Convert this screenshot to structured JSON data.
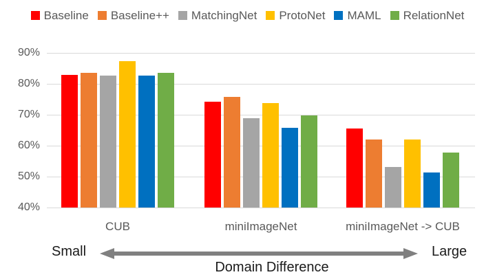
{
  "chart_data": {
    "type": "bar",
    "title": "",
    "categories": [
      "CUB",
      "miniImageNet",
      "miniImageNet -> CUB"
    ],
    "series": [
      {
        "name": "Baseline",
        "color": "#FF0000",
        "values": [
          82.85,
          74.27,
          65.57
        ]
      },
      {
        "name": "Baseline++",
        "color": "#ED7D31",
        "values": [
          83.58,
          75.68,
          62.04
        ]
      },
      {
        "name": "MatchingNet",
        "color": "#A5A5A5",
        "values": [
          82.75,
          68.88,
          53.07
        ]
      },
      {
        "name": "ProtoNet",
        "color": "#FFC000",
        "values": [
          87.42,
          73.68,
          62.02
        ]
      },
      {
        "name": "MAML",
        "color": "#0070C0",
        "values": [
          82.7,
          65.72,
          51.34
        ]
      },
      {
        "name": "RelationNet",
        "color": "#70AD47",
        "values": [
          83.58,
          69.83,
          57.71
        ]
      }
    ],
    "ylim": [
      40,
      90
    ],
    "ytick_labels": [
      "90%",
      "80%",
      "70%",
      "60%",
      "50%",
      "40%"
    ],
    "grid": true,
    "legend_position": "top"
  },
  "footer": {
    "small_label": "Small",
    "large_label": "Large",
    "axis_label": "Domain Difference"
  },
  "style_colors": {
    "gridline": "#d9d9d9",
    "tick_text": "#595959",
    "arrow": "#808080"
  }
}
